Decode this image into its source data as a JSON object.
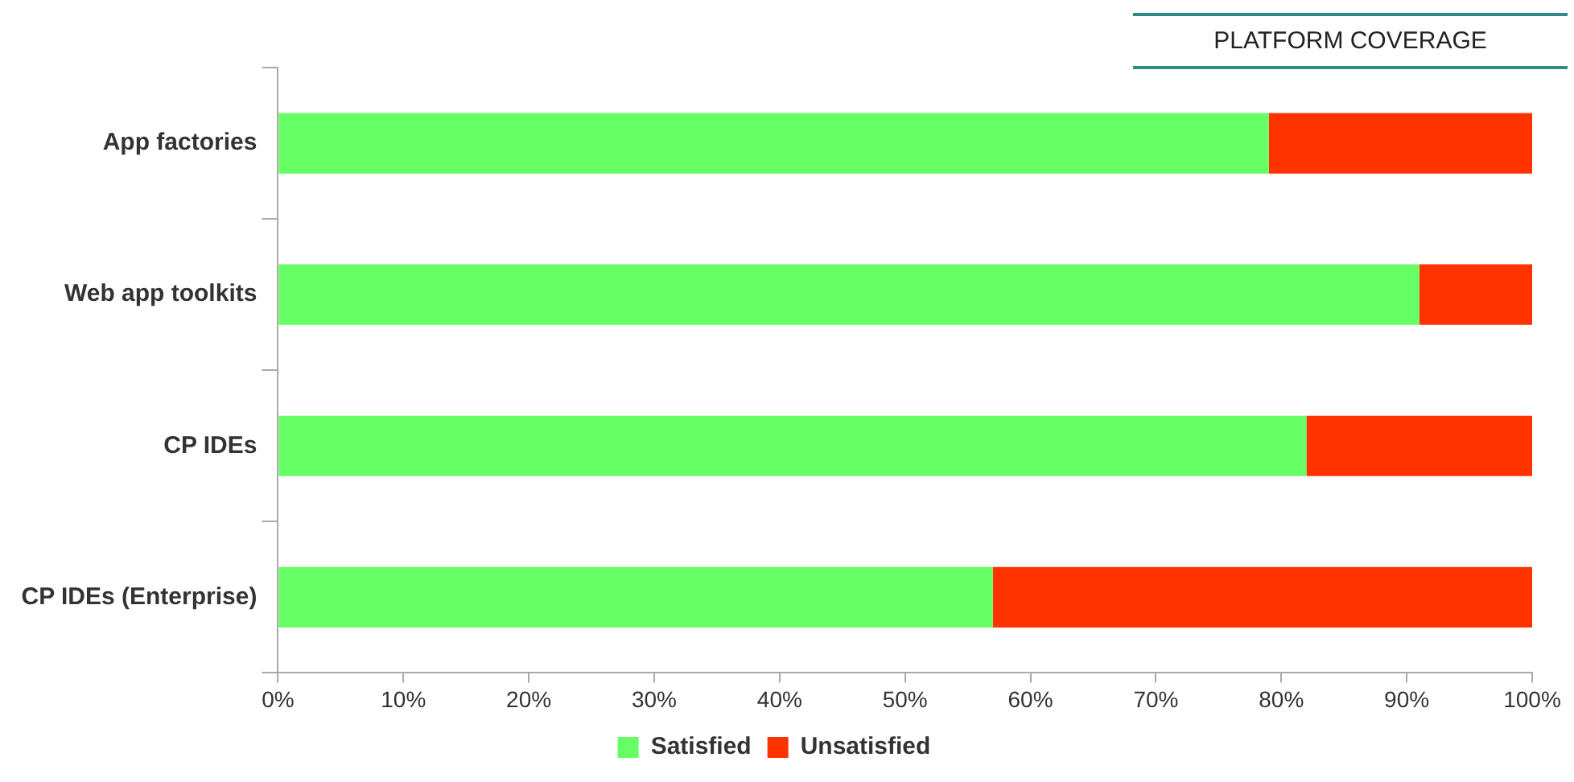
{
  "chart_data": {
    "type": "bar",
    "title": "PLATFORM COVERAGE",
    "orientation": "horizontal",
    "stacked": true,
    "legend": "bottom",
    "categories": [
      "App factories",
      "Web app toolkits",
      "CP IDEs",
      "CP IDEs (Enterprise)"
    ],
    "series": [
      {
        "name": "Satisfied",
        "color": "#66ff66",
        "values": [
          79,
          91,
          82,
          57
        ]
      },
      {
        "name": "Unsatisfied",
        "color": "#ff3300",
        "values": [
          21,
          9,
          18,
          43
        ]
      }
    ],
    "xlim": [
      0,
      100
    ],
    "xticks": [
      {
        "value": 0,
        "label": "0%"
      },
      {
        "value": 10,
        "label": "10%"
      },
      {
        "value": 20,
        "label": "20%"
      },
      {
        "value": 30,
        "label": "30%"
      },
      {
        "value": 40,
        "label": "40%"
      },
      {
        "value": 50,
        "label": "50%"
      },
      {
        "value": 60,
        "label": "60%"
      },
      {
        "value": 70,
        "label": "70%"
      },
      {
        "value": 80,
        "label": "80%"
      },
      {
        "value": 90,
        "label": "90%"
      },
      {
        "value": 100,
        "label": "100%"
      }
    ]
  }
}
